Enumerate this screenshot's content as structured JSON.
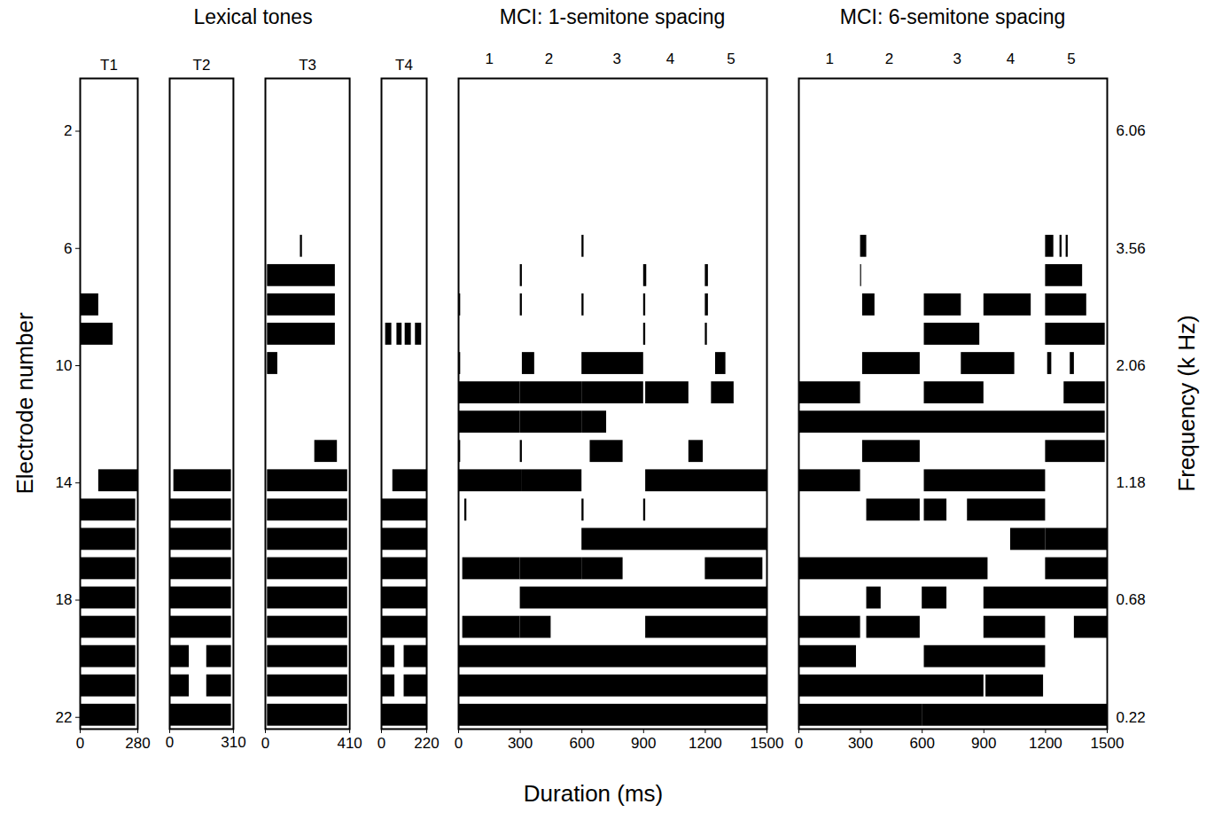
{
  "xlabel": "Duration (ms)",
  "chart_data": [
    {
      "type": "electrodogram",
      "group": "Lexical tones",
      "title": "T1",
      "color": "#000000",
      "ylabel": "Electrode number",
      "xlim": [
        0,
        280
      ],
      "xticks": [
        0,
        280
      ],
      "ylim": [
        22.4,
        0.2
      ],
      "yticks": [
        2,
        6,
        10,
        14,
        18,
        22
      ],
      "activity": [
        {
          "electrode": 8,
          "spans": [
            [
              0,
              90
            ]
          ]
        },
        {
          "electrode": 9,
          "spans": [
            [
              0,
              160
            ]
          ]
        },
        {
          "electrode": 14,
          "spans": [
            [
              90,
              280
            ]
          ]
        },
        {
          "electrode": 15,
          "spans": [
            [
              0,
              270
            ]
          ]
        },
        {
          "electrode": 16,
          "spans": [
            [
              0,
              270
            ]
          ]
        },
        {
          "electrode": 17,
          "spans": [
            [
              0,
              270
            ]
          ]
        },
        {
          "electrode": 18,
          "spans": [
            [
              0,
              270
            ]
          ]
        },
        {
          "electrode": 19,
          "spans": [
            [
              0,
              270
            ]
          ]
        },
        {
          "electrode": 20,
          "spans": [
            [
              0,
              270
            ]
          ]
        },
        {
          "electrode": 21,
          "spans": [
            [
              0,
              270
            ]
          ]
        },
        {
          "electrode": 22,
          "spans": [
            [
              0,
              270
            ]
          ]
        }
      ]
    },
    {
      "type": "electrodogram",
      "group": "Lexical tones",
      "title": "T2",
      "color": "#000000",
      "xlim": [
        0,
        310
      ],
      "xticks": [
        0,
        310
      ],
      "ylim": [
        22.4,
        0.2
      ],
      "activity": [
        {
          "electrode": 14,
          "spans": [
            [
              20,
              300
            ]
          ]
        },
        {
          "electrode": 15,
          "spans": [
            [
              0,
              300
            ]
          ]
        },
        {
          "electrode": 16,
          "spans": [
            [
              0,
              300
            ]
          ]
        },
        {
          "electrode": 17,
          "spans": [
            [
              0,
              300
            ]
          ]
        },
        {
          "electrode": 18,
          "spans": [
            [
              0,
              300
            ]
          ]
        },
        {
          "electrode": 19,
          "spans": [
            [
              0,
              300
            ]
          ]
        },
        {
          "electrode": 20,
          "spans": [
            [
              0,
              95
            ],
            [
              180,
              300
            ]
          ]
        },
        {
          "electrode": 21,
          "spans": [
            [
              0,
              95
            ],
            [
              180,
              300
            ]
          ]
        },
        {
          "electrode": 22,
          "spans": [
            [
              0,
              300
            ]
          ]
        }
      ]
    },
    {
      "type": "electrodogram",
      "group": "Lexical tones",
      "title": "T3",
      "color": "#000000",
      "xlim": [
        0,
        410
      ],
      "xticks": [
        0,
        410
      ],
      "ylim": [
        22.4,
        0.2
      ],
      "activity": [
        {
          "electrode": 6,
          "spans": [
            [
              170,
              180
            ]
          ]
        },
        {
          "electrode": 7,
          "spans": [
            [
              10,
              340
            ]
          ]
        },
        {
          "electrode": 8,
          "spans": [
            [
              10,
              340
            ]
          ]
        },
        {
          "electrode": 9,
          "spans": [
            [
              10,
              340
            ]
          ]
        },
        {
          "electrode": 10,
          "spans": [
            [
              10,
              60
            ]
          ]
        },
        {
          "electrode": 13,
          "spans": [
            [
              240,
              350
            ]
          ]
        },
        {
          "electrode": 14,
          "spans": [
            [
              10,
              400
            ]
          ]
        },
        {
          "electrode": 15,
          "spans": [
            [
              10,
              400
            ]
          ]
        },
        {
          "electrode": 16,
          "spans": [
            [
              10,
              400
            ]
          ]
        },
        {
          "electrode": 17,
          "spans": [
            [
              10,
              400
            ]
          ]
        },
        {
          "electrode": 18,
          "spans": [
            [
              10,
              400
            ]
          ]
        },
        {
          "electrode": 19,
          "spans": [
            [
              10,
              400
            ]
          ]
        },
        {
          "electrode": 20,
          "spans": [
            [
              10,
              400
            ]
          ]
        },
        {
          "electrode": 21,
          "spans": [
            [
              10,
              400
            ]
          ]
        },
        {
          "electrode": 22,
          "spans": [
            [
              10,
              400
            ]
          ]
        }
      ]
    },
    {
      "type": "electrodogram",
      "group": "Lexical tones",
      "title": "T4",
      "color": "#000000",
      "xlim": [
        0,
        220
      ],
      "xticks": [
        0,
        220
      ],
      "ylim": [
        22.4,
        0.2
      ],
      "activity": [
        {
          "electrode": 9,
          "spans": [
            [
              20,
              50
            ],
            [
              75,
              100
            ],
            [
              115,
              145
            ],
            [
              165,
              195
            ]
          ]
        },
        {
          "electrode": 14,
          "spans": [
            [
              55,
              220
            ]
          ]
        },
        {
          "electrode": 15,
          "spans": [
            [
              0,
              220
            ]
          ]
        },
        {
          "electrode": 16,
          "spans": [
            [
              0,
              220
            ]
          ]
        },
        {
          "electrode": 17,
          "spans": [
            [
              0,
              220
            ]
          ]
        },
        {
          "electrode": 18,
          "spans": [
            [
              0,
              220
            ]
          ]
        },
        {
          "electrode": 19,
          "spans": [
            [
              0,
              220
            ]
          ]
        },
        {
          "electrode": 20,
          "spans": [
            [
              0,
              65
            ],
            [
              110,
              220
            ]
          ]
        },
        {
          "electrode": 21,
          "spans": [
            [
              0,
              65
            ],
            [
              110,
              220
            ]
          ]
        },
        {
          "electrode": 22,
          "spans": [
            [
              0,
              220
            ]
          ]
        }
      ]
    },
    {
      "type": "electrodogram",
      "group": "MCI: 1-semitone spacing",
      "color": "#000000",
      "xlim": [
        0,
        1500
      ],
      "xticks": [
        0,
        300,
        600,
        900,
        1200,
        1500
      ],
      "ylim": [
        22.4,
        0.2
      ],
      "annotations": [
        {
          "text": "1",
          "x": 150
        },
        {
          "text": "2",
          "x": 440
        },
        {
          "text": "3",
          "x": 770
        },
        {
          "text": "4",
          "x": 1030
        },
        {
          "text": "5",
          "x": 1325
        }
      ],
      "activity": [
        {
          "electrode": 6,
          "spans": [
            [
              600,
              610
            ]
          ]
        },
        {
          "electrode": 7,
          "spans": [
            [
              300,
              310
            ],
            [
              900,
              915
            ],
            [
              1200,
              1215
            ]
          ]
        },
        {
          "electrode": 8,
          "spans": [
            [
              0,
              10
            ],
            [
              300,
              310
            ],
            [
              600,
              610
            ],
            [
              900,
              910
            ],
            [
              1200,
              1215
            ]
          ]
        },
        {
          "electrode": 9,
          "spans": [
            [
              900,
              910
            ],
            [
              1200,
              1210
            ]
          ]
        },
        {
          "electrode": 10,
          "spans": [
            [
              0,
              10
            ],
            [
              310,
              370
            ],
            [
              600,
              900
            ],
            [
              1250,
              1300
            ]
          ]
        },
        {
          "electrode": 11,
          "spans": [
            [
              0,
              300
            ],
            [
              300,
              600
            ],
            [
              600,
              900
            ],
            [
              910,
              1120
            ],
            [
              1230,
              1340
            ]
          ]
        },
        {
          "electrode": 12,
          "spans": [
            [
              0,
              300
            ],
            [
              300,
              600
            ],
            [
              600,
              720
            ]
          ]
        },
        {
          "electrode": 13,
          "spans": [
            [
              0,
              10
            ],
            [
              300,
              310
            ],
            [
              640,
              800
            ],
            [
              1120,
              1190
            ]
          ]
        },
        {
          "electrode": 14,
          "spans": [
            [
              0,
              310
            ],
            [
              310,
              600
            ],
            [
              910,
              1500
            ]
          ]
        },
        {
          "electrode": 15,
          "spans": [
            [
              30,
              40
            ],
            [
              600,
              610
            ],
            [
              900,
              910
            ]
          ]
        },
        {
          "electrode": 16,
          "spans": [
            [
              600,
              1500
            ]
          ]
        },
        {
          "electrode": 17,
          "spans": [
            [
              20,
              300
            ],
            [
              300,
              600
            ],
            [
              600,
              800
            ],
            [
              1200,
              1480
            ]
          ]
        },
        {
          "electrode": 18,
          "spans": [
            [
              300,
              1500
            ]
          ]
        },
        {
          "electrode": 19,
          "spans": [
            [
              20,
              300
            ],
            [
              300,
              450
            ],
            [
              910,
              1500
            ]
          ]
        },
        {
          "electrode": 20,
          "spans": [
            [
              0,
              1500
            ]
          ]
        },
        {
          "electrode": 21,
          "spans": [
            [
              0,
              1500
            ]
          ]
        },
        {
          "electrode": 22,
          "spans": [
            [
              0,
              1500
            ]
          ]
        }
      ]
    },
    {
      "type": "electrodogram",
      "group": "MCI: 6-semitone spacing",
      "color": "#000000",
      "xlim": [
        0,
        1500
      ],
      "xticks": [
        0,
        300,
        600,
        900,
        1200,
        1500
      ],
      "ylim": [
        22.4,
        0.2
      ],
      "y2label": "Frequency (k Hz)",
      "electrode_frequencies": [
        {
          "electrode": 2,
          "frequency": 6.06
        },
        {
          "electrode": 6,
          "frequency": 3.56
        },
        {
          "electrode": 10,
          "frequency": 2.06
        },
        {
          "electrode": 14,
          "frequency": 1.18
        },
        {
          "electrode": 18,
          "frequency": 0.68
        },
        {
          "electrode": 22,
          "frequency": 0.22
        }
      ],
      "annotations": [
        {
          "text": "1",
          "x": 150
        },
        {
          "text": "2",
          "x": 440
        },
        {
          "text": "3",
          "x": 770
        },
        {
          "text": "4",
          "x": 1030
        },
        {
          "text": "5",
          "x": 1325
        }
      ],
      "activity": [
        {
          "electrode": 6,
          "spans": [
            [
              300,
              330
            ],
            [
              1200,
              1240
            ],
            [
              1270,
              1280
            ],
            [
              1300,
              1310
            ]
          ]
        },
        {
          "electrode": 7,
          "spans": [
            [
              300,
              305
            ],
            [
              1200,
              1380
            ]
          ]
        },
        {
          "electrode": 8,
          "spans": [
            [
              310,
              370
            ],
            [
              610,
              790
            ],
            [
              900,
              1130
            ],
            [
              1200,
              1400
            ]
          ]
        },
        {
          "electrode": 9,
          "spans": [
            [
              610,
              880
            ],
            [
              1200,
              1490
            ]
          ]
        },
        {
          "electrode": 10,
          "spans": [
            [
              310,
              590
            ],
            [
              790,
              1050
            ],
            [
              1210,
              1230
            ],
            [
              1320,
              1340
            ]
          ]
        },
        {
          "electrode": 11,
          "spans": [
            [
              0,
              300
            ],
            [
              610,
              900
            ],
            [
              1290,
              1490
            ]
          ]
        },
        {
          "electrode": 12,
          "spans": [
            [
              0,
              1490
            ]
          ]
        },
        {
          "electrode": 13,
          "spans": [
            [
              310,
              590
            ],
            [
              1200,
              1490
            ]
          ]
        },
        {
          "electrode": 14,
          "spans": [
            [
              0,
              300
            ],
            [
              610,
              1200
            ]
          ]
        },
        {
          "electrode": 15,
          "spans": [
            [
              330,
              590
            ],
            [
              610,
              720
            ],
            [
              820,
              1200
            ]
          ]
        },
        {
          "electrode": 16,
          "spans": [
            [
              1030,
              1200
            ],
            [
              1200,
              1500
            ]
          ]
        },
        {
          "electrode": 17,
          "spans": [
            [
              0,
              920
            ],
            [
              1200,
              1500
            ]
          ]
        },
        {
          "electrode": 18,
          "spans": [
            [
              330,
              400
            ],
            [
              600,
              720
            ],
            [
              900,
              1500
            ]
          ]
        },
        {
          "electrode": 19,
          "spans": [
            [
              0,
              300
            ],
            [
              330,
              590
            ],
            [
              900,
              1200
            ],
            [
              1340,
              1500
            ]
          ]
        },
        {
          "electrode": 20,
          "spans": [
            [
              0,
              280
            ],
            [
              610,
              1200
            ]
          ]
        },
        {
          "electrode": 21,
          "spans": [
            [
              0,
              900
            ],
            [
              910,
              1190
            ]
          ]
        },
        {
          "electrode": 22,
          "spans": [
            [
              0,
              600
            ],
            [
              600,
              1500
            ]
          ]
        }
      ]
    }
  ]
}
